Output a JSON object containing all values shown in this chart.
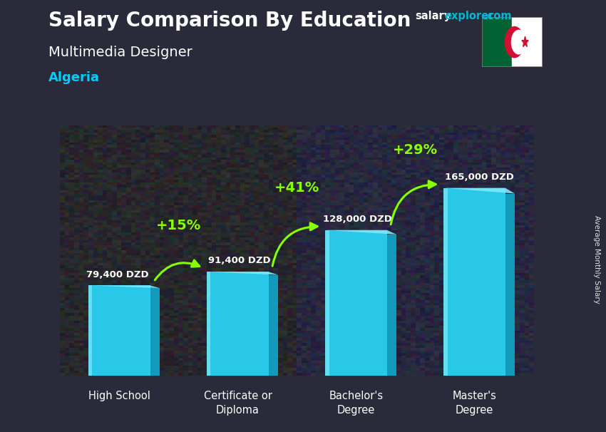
{
  "title_salary": "Salary Comparison By Education",
  "subtitle_job": "Multimedia Designer",
  "subtitle_country": "Algeria",
  "ylabel": "Average Monthly Salary",
  "categories": [
    "High School",
    "Certificate or\nDiploma",
    "Bachelor's\nDegree",
    "Master's\nDegree"
  ],
  "values": [
    79400,
    91400,
    128000,
    165000
  ],
  "value_labels": [
    "79,400 DZD",
    "91,400 DZD",
    "128,000 DZD",
    "165,000 DZD"
  ],
  "pct_changes": [
    "+15%",
    "+41%",
    "+29%"
  ],
  "bar_color_face": "#29c7e8",
  "bar_color_dark": "#0e7fa0",
  "bar_color_light": "#7de8f8",
  "bar_color_side": "#1399bb",
  "background_color": "#2a2a3a",
  "title_color": "#ffffff",
  "subtitle_job_color": "#ffffff",
  "subtitle_country_color": "#00ccff",
  "label_color": "#ffffff",
  "pct_color": "#88ff00",
  "arrow_color": "#88ff00",
  "brand_salary_color": "#ffffff",
  "brand_explorer_color": "#00b8d4",
  "ylim": [
    0,
    220000
  ],
  "brand_text_salary": "salary",
  "brand_text_explorer": "explorer",
  "brand_text_com": ".com"
}
